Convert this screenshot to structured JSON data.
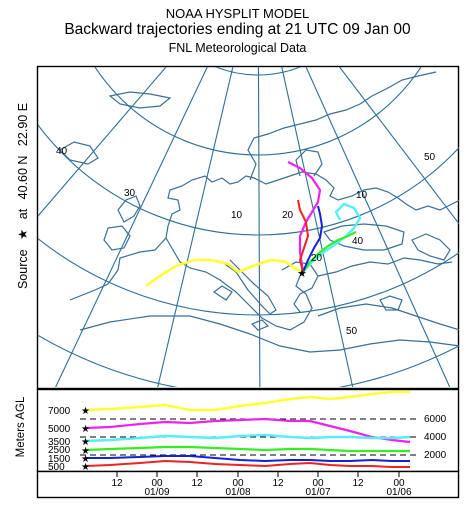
{
  "header": {
    "line1": "NOAA HYSPLIT MODEL",
    "line2": "Backward trajectories ending at 21 UTC 09 Jan 00",
    "line3": "FNL  Meteorological Data"
  },
  "side_label": {
    "source_text": "Source",
    "star_glyph": "★",
    "at_text": "at",
    "lat": "40.60 N",
    "lon": "22.90 E"
  },
  "grid_labels": [
    "40",
    "30",
    "20",
    "40",
    "50",
    "50",
    "10",
    "20",
    "10"
  ],
  "profile": {
    "axis_label": "Meters AGL",
    "left_ticks": [
      "7000",
      "5000",
      "3500",
      "2500",
      "1500",
      "500"
    ],
    "right_ticks": [
      "6000",
      "4000",
      "2000"
    ],
    "time_labels": [
      "12",
      "00",
      "12",
      "00",
      "12",
      "00",
      "12",
      "00"
    ],
    "date_labels": [
      "01/09",
      "01/08",
      "01/07",
      "01/06"
    ]
  },
  "colors": {
    "t7000": "#ffff33",
    "t5000": "#ee22ee",
    "t3500": "#55eeff",
    "t2500": "#33ee22",
    "t1500": "#1122dd",
    "t500": "#ee2222",
    "grid": "#2d6f98"
  },
  "trajectories": [
    {
      "start_height": "7000",
      "color_key": "t7000"
    },
    {
      "start_height": "5000",
      "color_key": "t5000"
    },
    {
      "start_height": "3500",
      "color_key": "t3500"
    },
    {
      "start_height": "2500",
      "color_key": "t2500"
    },
    {
      "start_height": "1500",
      "color_key": "t1500"
    },
    {
      "start_height": "500",
      "color_key": "t500"
    }
  ]
}
